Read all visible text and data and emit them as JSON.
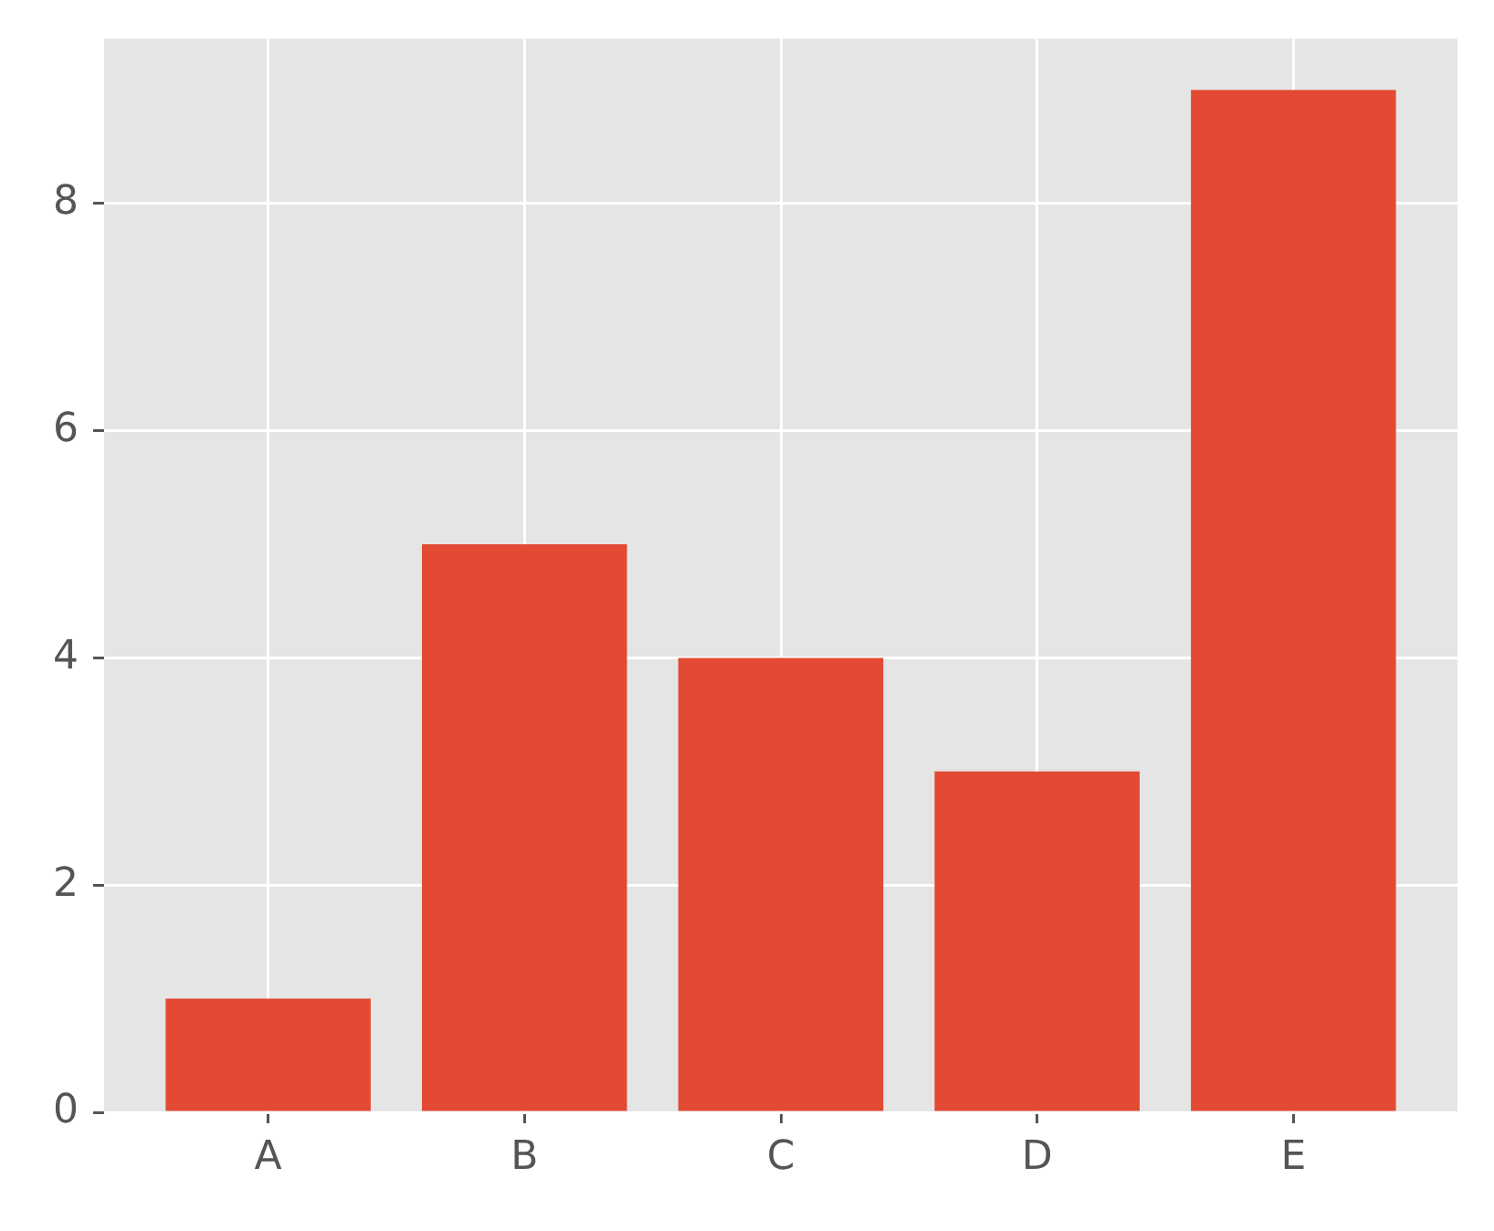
{
  "chart_data": {
    "type": "bar",
    "categories": [
      "A",
      "B",
      "C",
      "D",
      "E"
    ],
    "values": [
      1,
      5,
      4,
      3,
      9
    ],
    "color": "#e24a33",
    "ylim": [
      0,
      9.45
    ],
    "yticks": [
      0,
      2,
      4,
      6,
      8
    ],
    "grid": true
  }
}
